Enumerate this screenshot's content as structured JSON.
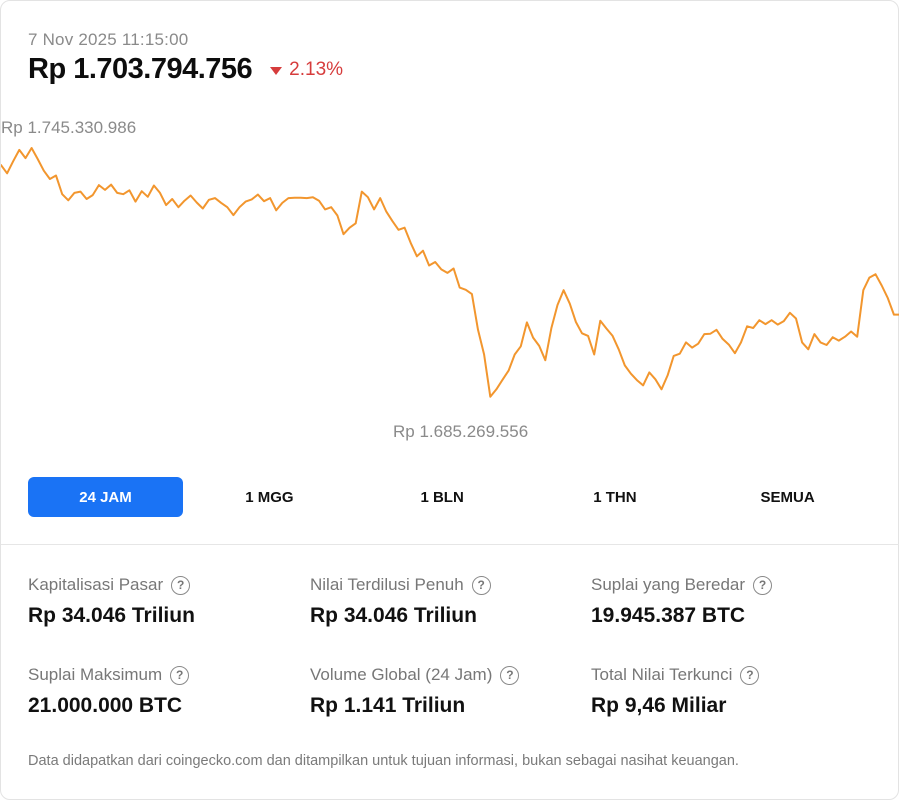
{
  "header": {
    "timestamp": "7 Nov 2025 11:15:00",
    "price": "Rp 1.703.794.756",
    "change": "2.13%",
    "change_direction": "down",
    "change_color": "#d63c3c"
  },
  "chart": {
    "line_color": "#f2962e",
    "max_label": "Rp 1.745.330.986",
    "min_label": "Rp 1.685.269.556"
  },
  "chart_data": {
    "type": "line",
    "ylim": [
      1685269556,
      1745330986
    ],
    "series": [
      {
        "values": [
          1741400000,
          1739500000,
          1742300000,
          1744900000,
          1743000000,
          1745330986,
          1742800000,
          1740100000,
          1738200000,
          1739000000,
          1734700000,
          1733300000,
          1735000000,
          1735300000,
          1733600000,
          1734500000,
          1736800000,
          1735700000,
          1736900000,
          1735000000,
          1734700000,
          1735600000,
          1733000000,
          1735400000,
          1734100000,
          1736700000,
          1735000000,
          1732200000,
          1733600000,
          1731700000,
          1733200000,
          1734400000,
          1732800000,
          1731400000,
          1733400000,
          1733800000,
          1732700000,
          1731700000,
          1729900000,
          1731700000,
          1733000000,
          1733500000,
          1734600000,
          1733100000,
          1733800000,
          1731000000,
          1732700000,
          1733800000,
          1733900000,
          1733900000,
          1733800000,
          1734000000,
          1733200000,
          1731200000,
          1731700000,
          1729800000,
          1725500000,
          1727000000,
          1728000000,
          1735300000,
          1734000000,
          1731200000,
          1733800000,
          1730700000,
          1728500000,
          1726500000,
          1727000000,
          1723500000,
          1720400000,
          1721700000,
          1718300000,
          1719100000,
          1717400000,
          1716600000,
          1717600000,
          1713200000,
          1712700000,
          1711700000,
          1703500000,
          1697800000,
          1688100000,
          1689800000,
          1692000000,
          1694100000,
          1697800000,
          1699700000,
          1705200000,
          1701700000,
          1699800000,
          1696500000,
          1703900000,
          1709200000,
          1712600000,
          1709500000,
          1705300000,
          1702700000,
          1702100000,
          1697800000,
          1705600000,
          1703800000,
          1702100000,
          1699000000,
          1695300000,
          1693400000,
          1691900000,
          1690700000,
          1693700000,
          1692100000,
          1689800000,
          1693000000,
          1697500000,
          1698000000,
          1700600000,
          1699400000,
          1700300000,
          1702500000,
          1702600000,
          1703500000,
          1701400000,
          1700100000,
          1698100000,
          1700600000,
          1704300000,
          1703900000,
          1705700000,
          1704800000,
          1705700000,
          1704700000,
          1705500000,
          1707400000,
          1706100000,
          1700600000,
          1699000000,
          1702500000,
          1700600000,
          1700000000,
          1701800000,
          1701000000,
          1701900000,
          1703100000,
          1701900000,
          1712600000,
          1715500000,
          1716300000,
          1713700000,
          1710800000,
          1707000000,
          1707000000
        ]
      }
    ]
  },
  "range_tabs": [
    {
      "label": "24 JAM",
      "active": true
    },
    {
      "label": "1 MGG",
      "active": false
    },
    {
      "label": "1 BLN",
      "active": false
    },
    {
      "label": "1 THN",
      "active": false
    },
    {
      "label": "SEMUA",
      "active": false
    }
  ],
  "accent_color": "#1a73f5",
  "stats": [
    {
      "label": "Kapitalisasi Pasar",
      "value": "Rp 34.046 Triliun",
      "icon": "help-icon"
    },
    {
      "label": "Nilai Terdilusi Penuh",
      "value": "Rp 34.046 Triliun",
      "icon": "help-icon"
    },
    {
      "label": "Suplai yang Beredar",
      "value": "19.945.387 BTC",
      "icon": "help-icon"
    },
    {
      "label": "Suplai Maksimum",
      "value": "21.000.000 BTC",
      "icon": "help-icon"
    },
    {
      "label": "Volume Global (24 Jam)",
      "value": "Rp 1.141 Triliun",
      "icon": "help-icon"
    },
    {
      "label": "Total Nilai Terkunci",
      "value": "Rp 9,46 Miliar",
      "icon": "help-icon"
    }
  ],
  "footer": {
    "disclaimer": "Data didapatkan dari coingecko.com dan ditampilkan untuk tujuan informasi, bukan sebagai nasihat keuangan."
  }
}
